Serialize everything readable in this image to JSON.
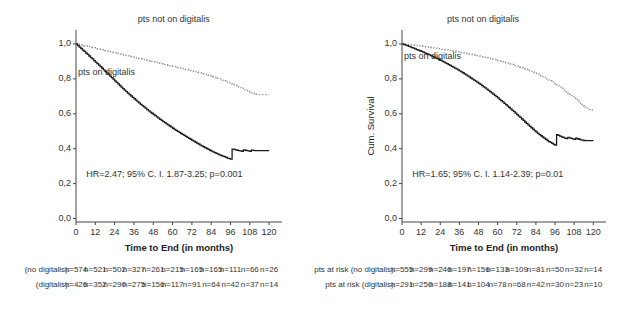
{
  "chart_data": [
    {
      "type": "step",
      "x_label": "Time to End (in months)",
      "annotations": [
        {
          "text": "pts not on digitalis"
        },
        {
          "text": "pts on digitalis"
        },
        {
          "text": "HR=2.47; 95% C. I. 1.87-3.25; p=0.001"
        }
      ],
      "x": [
        0,
        1,
        2,
        3,
        4,
        5,
        6,
        7,
        8,
        9,
        10,
        11,
        12,
        13,
        14,
        15,
        16,
        17,
        18,
        19,
        20,
        21,
        22,
        23,
        24,
        25,
        26,
        27,
        28,
        29,
        30,
        31,
        32,
        33,
        34,
        35,
        36,
        37,
        38,
        39,
        40,
        41,
        42,
        43,
        44,
        45,
        46,
        47,
        48,
        49,
        50,
        51,
        52,
        53,
        54,
        55,
        56,
        57,
        58,
        59,
        60,
        61,
        62,
        63,
        64,
        65,
        66,
        67,
        68,
        69,
        70,
        71,
        72,
        73,
        74,
        75,
        76,
        77,
        78,
        79,
        80,
        81,
        82,
        83,
        84,
        85,
        86,
        87,
        88,
        89,
        90,
        91,
        92,
        93,
        94,
        95,
        96,
        97,
        98,
        99,
        100,
        101,
        102,
        103,
        104,
        105,
        106,
        107,
        108,
        109,
        110,
        111,
        112,
        113,
        114,
        115,
        116,
        117,
        118,
        119,
        120
      ],
      "series": [
        {
          "color": "#888888",
          "line_style": "dotted",
          "values": [
            1.0,
            0.998,
            0.996,
            0.994,
            0.992,
            0.99,
            0.988,
            0.986,
            0.984,
            0.982,
            0.98,
            0.978,
            0.975,
            0.973,
            0.971,
            0.969,
            0.967,
            0.964,
            0.962,
            0.96,
            0.958,
            0.956,
            0.954,
            0.951,
            0.949,
            0.947,
            0.945,
            0.943,
            0.941,
            0.938,
            0.936,
            0.934,
            0.932,
            0.93,
            0.928,
            0.926,
            0.924,
            0.921,
            0.919,
            0.917,
            0.915,
            0.913,
            0.911,
            0.909,
            0.907,
            0.904,
            0.902,
            0.9,
            0.898,
            0.896,
            0.894,
            0.892,
            0.889,
            0.887,
            0.885,
            0.883,
            0.881,
            0.878,
            0.876,
            0.874,
            0.872,
            0.87,
            0.867,
            0.865,
            0.863,
            0.861,
            0.859,
            0.856,
            0.854,
            0.852,
            0.85,
            0.848,
            0.845,
            0.843,
            0.841,
            0.839,
            0.836,
            0.834,
            0.832,
            0.829,
            0.826,
            0.823,
            0.821,
            0.818,
            0.815,
            0.812,
            0.809,
            0.806,
            0.803,
            0.8,
            0.796,
            0.793,
            0.789,
            0.786,
            0.782,
            0.778,
            0.774,
            0.77,
            0.766,
            0.762,
            0.758,
            0.754,
            0.75,
            0.746,
            0.742,
            0.737,
            0.733,
            0.728,
            0.724,
            0.72,
            0.716,
            0.712,
            0.711,
            0.71,
            0.71,
            0.71,
            0.71,
            0.71,
            0.71,
            0.71,
            0.71
          ]
        },
        {
          "color": "#1a1a1a",
          "line_style": "solid",
          "values": [
            1.0,
            0.991,
            0.982,
            0.974,
            0.965,
            0.957,
            0.948,
            0.94,
            0.931,
            0.922,
            0.914,
            0.905,
            0.896,
            0.887,
            0.879,
            0.87,
            0.861,
            0.852,
            0.843,
            0.834,
            0.825,
            0.816,
            0.807,
            0.798,
            0.789,
            0.78,
            0.771,
            0.762,
            0.753,
            0.744,
            0.735,
            0.727,
            0.718,
            0.71,
            0.702,
            0.694,
            0.686,
            0.678,
            0.67,
            0.662,
            0.654,
            0.647,
            0.639,
            0.632,
            0.624,
            0.617,
            0.61,
            0.603,
            0.596,
            0.589,
            0.582,
            0.575,
            0.568,
            0.562,
            0.555,
            0.549,
            0.542,
            0.536,
            0.53,
            0.523,
            0.517,
            0.511,
            0.505,
            0.499,
            0.493,
            0.487,
            0.482,
            0.476,
            0.47,
            0.465,
            0.459,
            0.454,
            0.448,
            0.443,
            0.437,
            0.432,
            0.427,
            0.421,
            0.416,
            0.411,
            0.406,
            0.401,
            0.396,
            0.391,
            0.386,
            0.382,
            0.377,
            0.373,
            0.369,
            0.365,
            0.361,
            0.357,
            0.354,
            0.35,
            0.346,
            0.343,
            0.34,
            0.398,
            0.396,
            0.393,
            0.391,
            0.389,
            0.387,
            0.385,
            0.393,
            0.391,
            0.389,
            0.387,
            0.385,
            0.392,
            0.39,
            0.389,
            0.389,
            0.389,
            0.389,
            0.389,
            0.389,
            0.389,
            0.389,
            0.389,
            0.389
          ]
        }
      ],
      "at_risk": [
        {
          "label": "(no digitalis):",
          "labels": [
            "n=574",
            "n=521",
            "n=502",
            "n=327",
            "n=261",
            "n=215",
            "n=165",
            "n=165",
            "n=111",
            "n=66",
            "n=26"
          ]
        },
        {
          "label": "(digitalis):",
          "labels": [
            "n=426",
            "n=352",
            "n=290",
            "n=275",
            "n=156",
            "n=117",
            "n=91",
            "n=64",
            "n=42",
            "n=37",
            "n=14"
          ]
        }
      ],
      "xlim": [
        0,
        128
      ],
      "xticks": [
        0,
        12,
        24,
        36,
        48,
        60,
        72,
        84,
        96,
        108,
        120
      ],
      "ylim": [
        -0.02,
        1.08
      ],
      "yticks": [
        {
          "value": 0.0,
          "label": "0,0"
        },
        {
          "value": 0.2,
          "label": "0,2"
        },
        {
          "value": 0.4,
          "label": "0,4"
        },
        {
          "value": 0.6,
          "label": "0,6"
        },
        {
          "value": 0.8,
          "label": "0,8"
        },
        {
          "value": 1.0,
          "label": "1,0"
        }
      ]
    },
    {
      "type": "step",
      "x_label": "Time to End (in months)",
      "y_label": "Cum. Survival",
      "annotations": [
        {
          "text": "pts not on digitalis"
        },
        {
          "text": "pts on digitalis"
        },
        {
          "text": "HR=1.65; 95% C. I. 1.14-2.39; p=0.01"
        }
      ],
      "x": [
        0,
        1,
        2,
        3,
        4,
        5,
        6,
        7,
        8,
        9,
        10,
        11,
        12,
        13,
        14,
        15,
        16,
        17,
        18,
        19,
        20,
        21,
        22,
        23,
        24,
        25,
        26,
        27,
        28,
        29,
        30,
        31,
        32,
        33,
        34,
        35,
        36,
        37,
        38,
        39,
        40,
        41,
        42,
        43,
        44,
        45,
        46,
        47,
        48,
        49,
        50,
        51,
        52,
        53,
        54,
        55,
        56,
        57,
        58,
        59,
        60,
        61,
        62,
        63,
        64,
        65,
        66,
        67,
        68,
        69,
        70,
        71,
        72,
        73,
        74,
        75,
        76,
        77,
        78,
        79,
        80,
        81,
        82,
        83,
        84,
        85,
        86,
        87,
        88,
        89,
        90,
        91,
        92,
        93,
        94,
        95,
        96,
        97,
        98,
        99,
        100,
        101,
        102,
        103,
        104,
        105,
        106,
        107,
        108,
        109,
        110,
        111,
        112,
        113,
        114,
        115,
        116,
        117,
        118,
        119,
        120
      ],
      "series": [
        {
          "color": "#888888",
          "line_style": "dotted",
          "values": [
            1.0,
            0.999,
            0.998,
            0.997,
            0.996,
            0.995,
            0.994,
            0.993,
            0.992,
            0.991,
            0.99,
            0.989,
            0.988,
            0.986,
            0.985,
            0.984,
            0.983,
            0.981,
            0.98,
            0.979,
            0.977,
            0.976,
            0.975,
            0.973,
            0.972,
            0.97,
            0.969,
            0.967,
            0.966,
            0.964,
            0.963,
            0.961,
            0.96,
            0.958,
            0.956,
            0.955,
            0.953,
            0.951,
            0.95,
            0.948,
            0.946,
            0.944,
            0.943,
            0.941,
            0.939,
            0.937,
            0.935,
            0.933,
            0.931,
            0.929,
            0.927,
            0.925,
            0.923,
            0.921,
            0.919,
            0.917,
            0.914,
            0.912,
            0.91,
            0.908,
            0.905,
            0.903,
            0.9,
            0.898,
            0.895,
            0.893,
            0.89,
            0.887,
            0.885,
            0.882,
            0.879,
            0.876,
            0.873,
            0.87,
            0.867,
            0.864,
            0.861,
            0.858,
            0.854,
            0.851,
            0.847,
            0.843,
            0.84,
            0.836,
            0.832,
            0.828,
            0.823,
            0.819,
            0.814,
            0.81,
            0.805,
            0.8,
            0.794,
            0.789,
            0.783,
            0.778,
            0.772,
            0.766,
            0.76,
            0.753,
            0.747,
            0.74,
            0.733,
            0.726,
            0.719,
            0.712,
            0.704,
            0.697,
            0.689,
            0.682,
            0.674,
            0.667,
            0.66,
            0.653,
            0.646,
            0.638,
            0.631,
            0.624,
            0.622,
            0.621,
            0.62
          ]
        },
        {
          "color": "#1a1a1a",
          "line_style": "solid",
          "values": [
            1.0,
            0.997,
            0.993,
            0.99,
            0.986,
            0.983,
            0.979,
            0.976,
            0.972,
            0.968,
            0.965,
            0.961,
            0.957,
            0.953,
            0.949,
            0.945,
            0.941,
            0.937,
            0.933,
            0.929,
            0.924,
            0.92,
            0.916,
            0.911,
            0.906,
            0.902,
            0.897,
            0.892,
            0.887,
            0.882,
            0.877,
            0.872,
            0.867,
            0.862,
            0.857,
            0.851,
            0.846,
            0.84,
            0.835,
            0.829,
            0.823,
            0.817,
            0.811,
            0.805,
            0.799,
            0.793,
            0.787,
            0.781,
            0.774,
            0.768,
            0.761,
            0.754,
            0.748,
            0.741,
            0.734,
            0.727,
            0.72,
            0.713,
            0.705,
            0.698,
            0.691,
            0.683,
            0.675,
            0.668,
            0.66,
            0.652,
            0.644,
            0.636,
            0.628,
            0.62,
            0.612,
            0.604,
            0.595,
            0.587,
            0.579,
            0.57,
            0.562,
            0.553,
            0.545,
            0.536,
            0.528,
            0.52,
            0.512,
            0.504,
            0.496,
            0.488,
            0.481,
            0.474,
            0.467,
            0.46,
            0.454,
            0.447,
            0.441,
            0.436,
            0.43,
            0.425,
            0.421,
            0.48,
            0.476,
            0.472,
            0.468,
            0.465,
            0.461,
            0.458,
            0.465,
            0.462,
            0.459,
            0.456,
            0.453,
            0.46,
            0.457,
            0.454,
            0.451,
            0.449,
            0.447,
            0.446,
            0.446,
            0.446,
            0.446,
            0.446,
            0.446
          ]
        }
      ],
      "at_risk": [
        {
          "label": "pts at risk (no digitalis):",
          "labels": [
            "n=555",
            "n=299",
            "n=246",
            "n=197",
            "n=156",
            "n=133",
            "n=109",
            "n=81",
            "n=50",
            "n=32",
            "n=14"
          ]
        },
        {
          "label": "pts at risk (digitalis):",
          "labels": [
            "n=291",
            "n=250",
            "n=188",
            "n=141",
            "n=104",
            "n=78",
            "n=68",
            "n=42",
            "n=30",
            "n=23",
            "n=10"
          ]
        }
      ],
      "xlim": [
        0,
        128
      ],
      "xticks": [
        0,
        12,
        24,
        36,
        48,
        60,
        72,
        84,
        96,
        108,
        120
      ],
      "ylim": [
        -0.02,
        1.08
      ],
      "yticks": [
        {
          "value": 0.0,
          "label": "0,0"
        },
        {
          "value": 0.2,
          "label": "0,2"
        },
        {
          "value": 0.4,
          "label": "0,4"
        },
        {
          "value": 0.6,
          "label": "0,6"
        },
        {
          "value": 0.8,
          "label": "0,8"
        },
        {
          "value": 1.0,
          "label": "1,0"
        }
      ]
    }
  ]
}
